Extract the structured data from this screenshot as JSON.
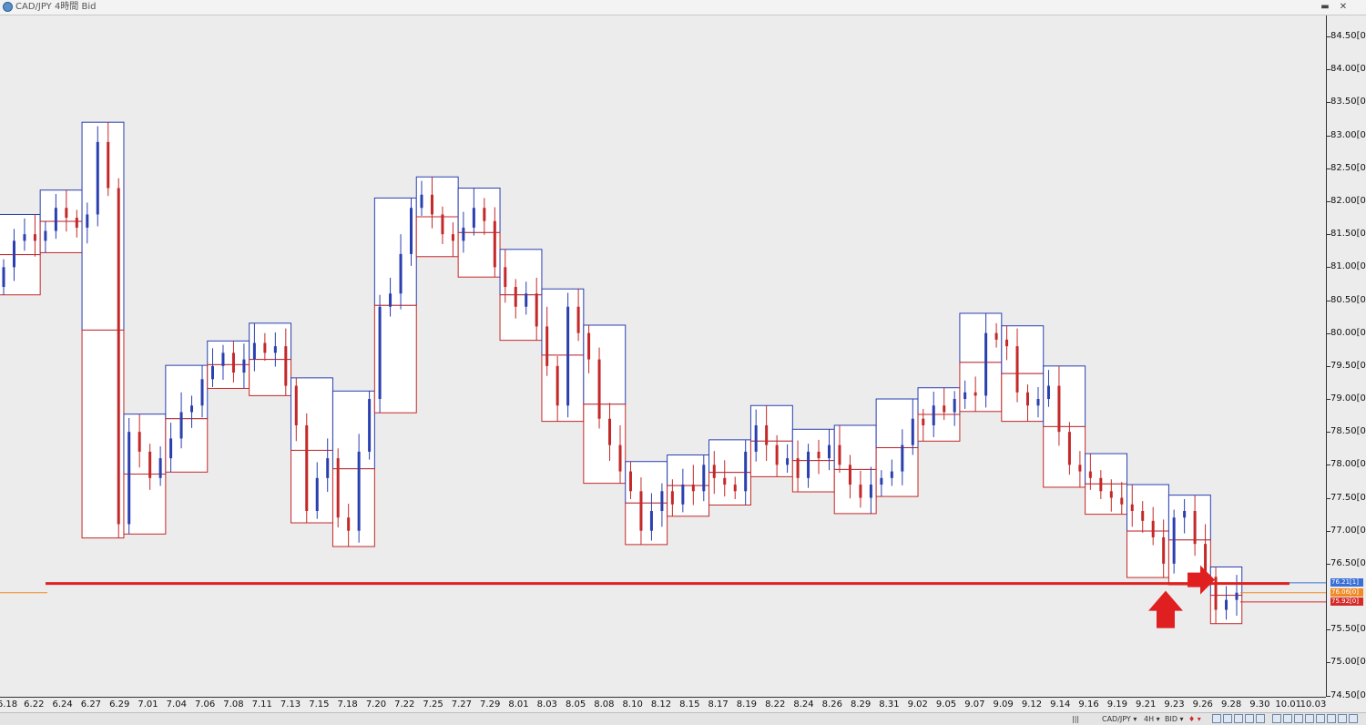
{
  "window": {
    "title": "CAD/JPY 4時間 Bid",
    "minimize_glyph": "▬",
    "close_glyph": "✕"
  },
  "chart_data": {
    "type": "candlestick",
    "symbol": "CAD/JPY",
    "timeframe": "4時間",
    "price_side": "Bid",
    "ylim": [
      74.48,
      84.82
    ],
    "y_ticks": [
      "84.50[0]",
      "84.00[0]",
      "83.50[0]",
      "83.00[0]",
      "82.50[0]",
      "82.00[0]",
      "81.50[0]",
      "81.00[0]",
      "80.50[0]",
      "80.00[0]",
      "79.50[0]",
      "79.00[0]",
      "78.50[0]",
      "78.00[0]",
      "77.50[0]",
      "77.00[0]",
      "76.50[0]",
      "75.50[0]",
      "75.00[0]",
      "74.50[0]"
    ],
    "x_ticks": [
      "6.18",
      "6.22",
      "6.24",
      "6.27",
      "6.29",
      "7.01",
      "7.04",
      "7.06",
      "7.08",
      "7.11",
      "7.13",
      "7.15",
      "7.18",
      "7.20",
      "7.22",
      "7.25",
      "7.27",
      "7.29",
      "8.01",
      "8.03",
      "8.05",
      "8.08",
      "8.10",
      "8.12",
      "8.15",
      "8.17",
      "8.19",
      "8.22",
      "8.24",
      "8.26",
      "8.29",
      "8.31",
      "9.02",
      "9.05",
      "9.07",
      "9.09",
      "9.12",
      "9.14",
      "9.16",
      "9.19",
      "9.21",
      "9.23",
      "9.26",
      "9.28",
      "9.30",
      "10.01",
      "10.03"
    ],
    "price_tags": [
      {
        "label": "76.21[1]",
        "value": 76.21,
        "color": "#3b6fd6"
      },
      {
        "label": "76.06[0]",
        "value": 76.06,
        "color": "#f08a24"
      },
      {
        "label": "75.92[0]",
        "value": 75.92,
        "color": "#d42a2a"
      }
    ],
    "closes": [
      81.0,
      81.4,
      81.5,
      81.4,
      81.55,
      81.9,
      81.75,
      81.6,
      81.8,
      82.9,
      82.2,
      77.1,
      78.5,
      78.2,
      77.8,
      78.1,
      78.4,
      78.8,
      78.9,
      79.3,
      79.5,
      79.7,
      79.4,
      79.6,
      79.85,
      79.7,
      79.8,
      79.2,
      78.6,
      77.3,
      77.8,
      78.1,
      77.2,
      77.0,
      78.2,
      79.0,
      80.4,
      80.6,
      81.2,
      81.9,
      82.1,
      81.8,
      81.5,
      81.4,
      81.6,
      81.9,
      81.7,
      81.0,
      80.7,
      80.4,
      80.6,
      80.1,
      79.5,
      78.9,
      80.4,
      80.0,
      79.6,
      78.7,
      78.3,
      77.9,
      77.6,
      77.0,
      77.3,
      77.6,
      77.4,
      77.7,
      77.6,
      78.0,
      77.8,
      77.7,
      77.6,
      78.2,
      78.6,
      78.3,
      78.0,
      78.1,
      77.8,
      78.2,
      78.1,
      78.3,
      78.0,
      77.7,
      77.5,
      77.7,
      77.8,
      77.9,
      78.3,
      78.7,
      78.6,
      78.9,
      78.8,
      79.0,
      79.1,
      79.05,
      80.0,
      79.9,
      79.8,
      79.1,
      78.9,
      79.0,
      79.2,
      78.5,
      78.0,
      77.9,
      77.8,
      77.6,
      77.5,
      77.4,
      77.3,
      77.15,
      76.9,
      76.5,
      77.2,
      77.3,
      76.8,
      76.3,
      75.8,
      75.95,
      76.06
    ]
  },
  "annotations": {
    "support_line_price": 76.2,
    "up_arrow": "red up arrow under 9.21 low",
    "right_arrow": "red right arrow near 9.26 breakdown",
    "line_color": "#e02020"
  },
  "statusbar": {
    "symbol": "CAD/JPY ▾",
    "timeframe": "4H ▾",
    "side": "BID ▾",
    "marker": "♦ ▾",
    "scroll_glyph": "|||"
  }
}
